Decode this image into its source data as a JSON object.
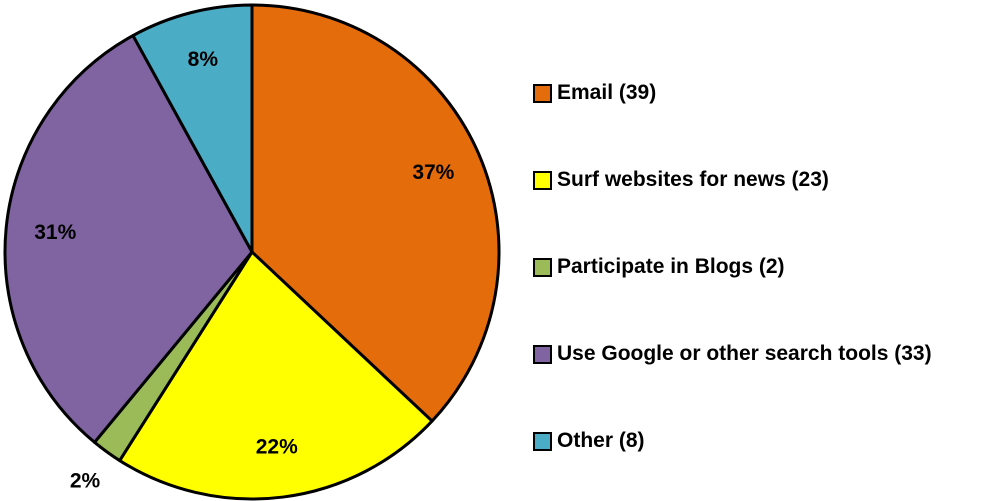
{
  "chart_data": {
    "type": "pie",
    "categories": [
      "Email (39)",
      "Surf websites for news (23)",
      "Participate in Blogs (2)",
      "Use Google or other search tools (33)",
      "Other (8)"
    ],
    "values": [
      37,
      22,
      2,
      31,
      8
    ],
    "value_labels": [
      "37%",
      "22%",
      "2%",
      "31%",
      "8%"
    ],
    "colors": [
      "#e46c0a",
      "#ffff00",
      "#9bbb59",
      "#8064a2",
      "#4bacc6"
    ],
    "legend": "right"
  }
}
